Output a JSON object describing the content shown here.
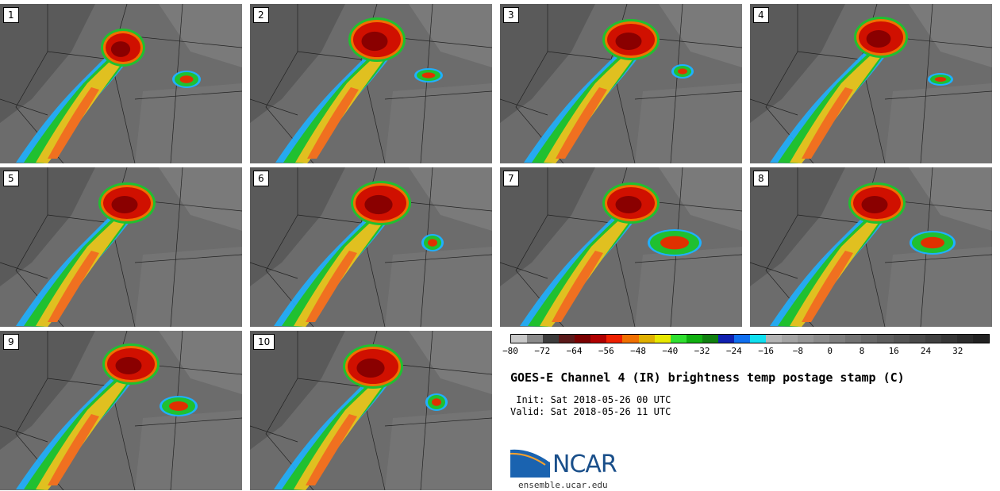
{
  "panels": [
    {
      "label": "1"
    },
    {
      "label": "2"
    },
    {
      "label": "3"
    },
    {
      "label": "4"
    },
    {
      "label": "5"
    },
    {
      "label": "6"
    },
    {
      "label": "7"
    },
    {
      "label": "8"
    },
    {
      "label": "9"
    },
    {
      "label": "10"
    }
  ],
  "colorbar": {
    "colors": [
      "#c8c8c8",
      "#8a8a8a",
      "#3c3c3c",
      "#5a1a1a",
      "#7a0000",
      "#b00000",
      "#ee2000",
      "#f07000",
      "#e0b000",
      "#e8e800",
      "#30e030",
      "#10b010",
      "#108010",
      "#1020b0",
      "#1070f0",
      "#10e0f0",
      "#b4b4b4",
      "#a4a4a4",
      "#969696",
      "#8a8a8a",
      "#7e7e7e",
      "#727272",
      "#686868",
      "#5e5e5e",
      "#545454",
      "#4a4a4a",
      "#404040",
      "#363636",
      "#2c2c2c",
      "#222222"
    ],
    "tick_labels": [
      "−80",
      "−72",
      "−64",
      "−56",
      "−48",
      "−40",
      "−32",
      "−24",
      "−16",
      "−8",
      "0",
      "8",
      "16",
      "24",
      "32"
    ]
  },
  "title": "GOES-E Channel 4 (IR) brightness temp postage stamp (C)",
  "init_text": " Init: Sat 2018-05-26 00 UTC",
  "valid_text": "Valid: Sat 2018-05-26 11 UTC",
  "logo": {
    "text": "NCAR",
    "url_text": "ensemble.ucar.edu"
  }
}
